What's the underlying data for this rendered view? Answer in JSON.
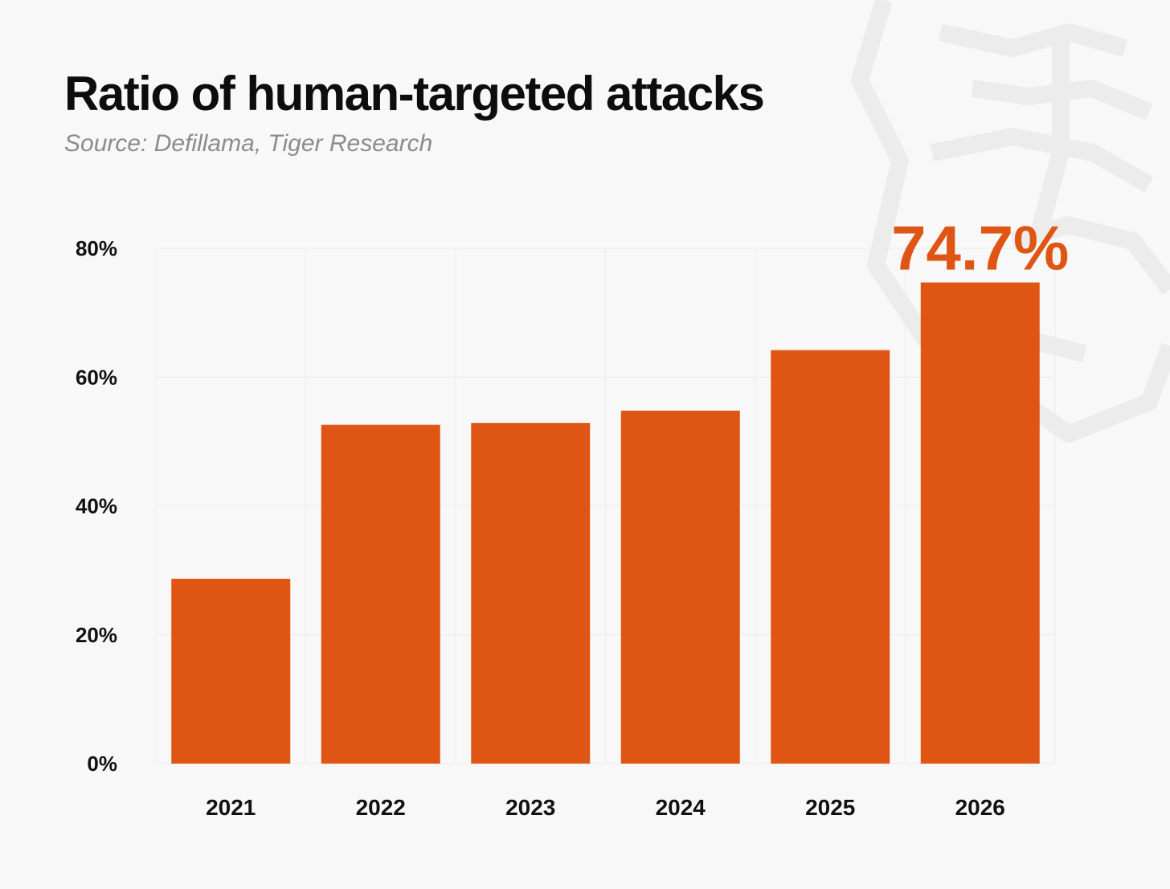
{
  "title": "Ratio of human-targeted attacks",
  "subtitle": "Source: Defillama, Tiger Research",
  "colors": {
    "bar": "#df5513",
    "grid": "#ececec",
    "watermark": "#ececec"
  },
  "chart_data": {
    "type": "bar",
    "categories": [
      "2021",
      "2022",
      "2023",
      "2024",
      "2025",
      "2026"
    ],
    "values": [
      28.7,
      52.6,
      52.9,
      54.8,
      64.2,
      74.7
    ],
    "ylim": [
      0,
      80
    ],
    "yticks": [
      0,
      20,
      40,
      60,
      80
    ],
    "ytick_labels": [
      "0%",
      "20%",
      "40%",
      "60%",
      "80%"
    ],
    "grid": true,
    "annotations": [
      {
        "category": "2026",
        "text": "74.7%"
      }
    ]
  }
}
